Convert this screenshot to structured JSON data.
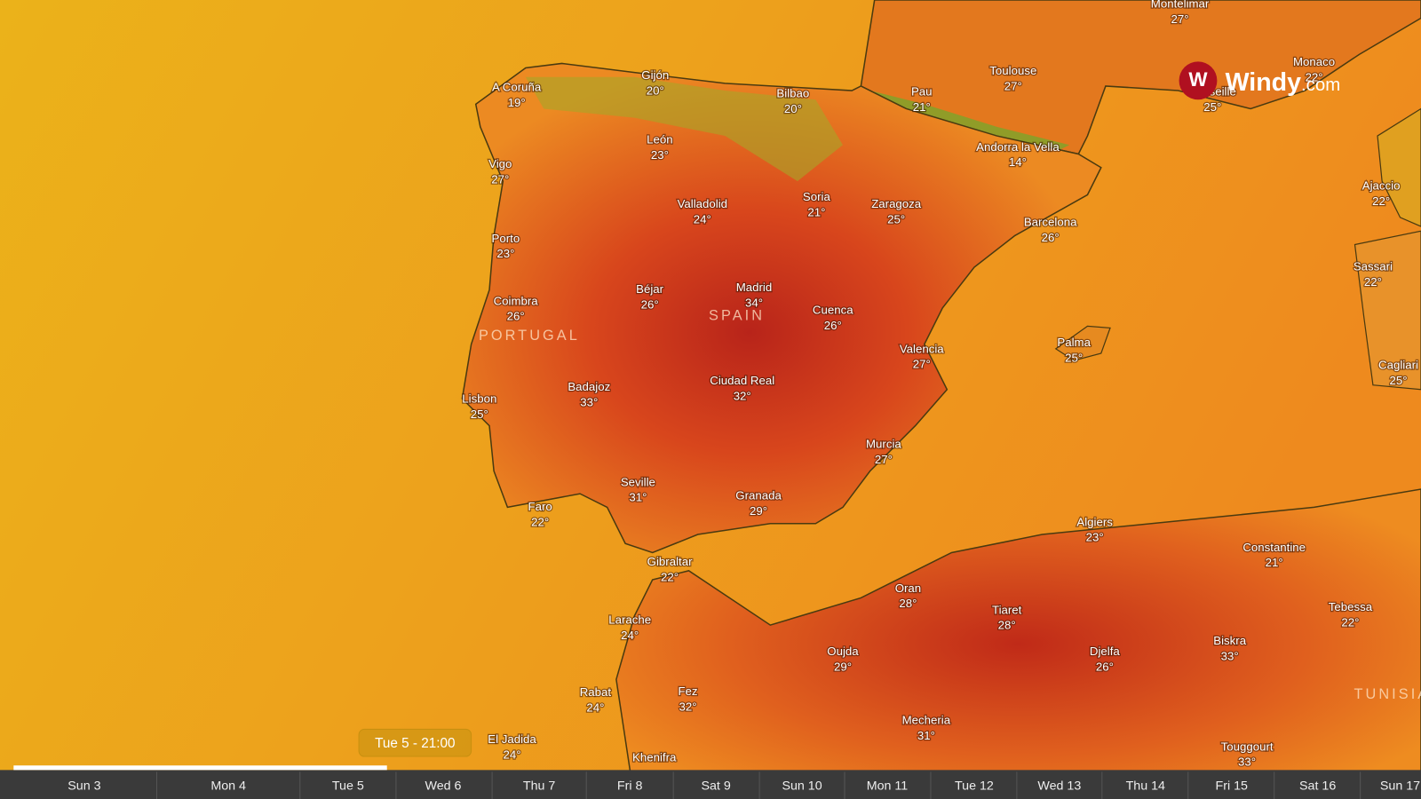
{
  "map": {
    "logo": {
      "name": "Windy",
      "domain": ".com"
    },
    "countries": [
      "SPAIN",
      "PORTUGAL",
      "TUNISIA"
    ],
    "cities": [
      {
        "name": "Montelimar",
        "temp": "27°"
      },
      {
        "name": "A Coruña",
        "temp": "19°"
      },
      {
        "name": "Gijón",
        "temp": "20°"
      },
      {
        "name": "Bilbao",
        "temp": "20°"
      },
      {
        "name": "Pau",
        "temp": "21°"
      },
      {
        "name": "Toulouse",
        "temp": "27°"
      },
      {
        "name": "Monaco",
        "temp": "22°"
      },
      {
        "name": "Marseille",
        "temp": "25°"
      },
      {
        "name": "León",
        "temp": "23°"
      },
      {
        "name": "Andorra la Vella",
        "temp": "14°"
      },
      {
        "name": "Ajaccio",
        "temp": "22°"
      },
      {
        "name": "Vigo",
        "temp": "27°"
      },
      {
        "name": "Valladolid",
        "temp": "24°"
      },
      {
        "name": "Soria",
        "temp": "21°"
      },
      {
        "name": "Zaragoza",
        "temp": "25°"
      },
      {
        "name": "Barcelona",
        "temp": "26°"
      },
      {
        "name": "Porto",
        "temp": "23°"
      },
      {
        "name": "Sassari",
        "temp": "22°"
      },
      {
        "name": "Coimbra",
        "temp": "26°"
      },
      {
        "name": "Béjar",
        "temp": "26°"
      },
      {
        "name": "Madrid",
        "temp": "34°"
      },
      {
        "name": "Cuenca",
        "temp": "26°"
      },
      {
        "name": "Valencia",
        "temp": "27°"
      },
      {
        "name": "Palma",
        "temp": "25°"
      },
      {
        "name": "Cagliari",
        "temp": "25°"
      },
      {
        "name": "Lisbon",
        "temp": "25°"
      },
      {
        "name": "Badajoz",
        "temp": "33°"
      },
      {
        "name": "Ciudad Real",
        "temp": "32°"
      },
      {
        "name": "Murcia",
        "temp": "27°"
      },
      {
        "name": "Seville",
        "temp": "31°"
      },
      {
        "name": "Granada",
        "temp": "29°"
      },
      {
        "name": "Faro",
        "temp": "22°"
      },
      {
        "name": "Algiers",
        "temp": "23°"
      },
      {
        "name": "Constantine",
        "temp": "21°"
      },
      {
        "name": "Gibraltar",
        "temp": "22°"
      },
      {
        "name": "Oran",
        "temp": "28°"
      },
      {
        "name": "Tiaret",
        "temp": "28°"
      },
      {
        "name": "Tebessa",
        "temp": "22°"
      },
      {
        "name": "Larache",
        "temp": "24°"
      },
      {
        "name": "Oujda",
        "temp": "29°"
      },
      {
        "name": "Djelfa",
        "temp": "26°"
      },
      {
        "name": "Biskra",
        "temp": "33°"
      },
      {
        "name": "Rabat",
        "temp": "24°"
      },
      {
        "name": "Fez",
        "temp": "32°"
      },
      {
        "name": "Mecheria",
        "temp": "31°"
      },
      {
        "name": "Touggourt",
        "temp": "33°"
      },
      {
        "name": "El Jadida",
        "temp": "24°"
      },
      {
        "name": "Khenifra"
      }
    ],
    "time_label": "Tue 5 - 21:00",
    "timeline": [
      "Sun 3",
      "Mon 4",
      "Tue 5",
      "Wed 6",
      "Thu 7",
      "Fri 8",
      "Sat 9",
      "Sun 10",
      "Mon 11",
      "Tue 12",
      "Wed 13",
      "Thu 14",
      "Fri 15",
      "Sat 16",
      "Sun 17"
    ]
  }
}
